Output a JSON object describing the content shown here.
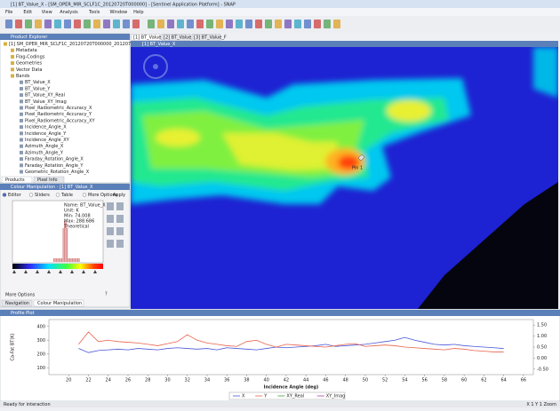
{
  "window": {
    "title": "[1] BT_Value_X - [SM_OPER_MIR_SCLF1C_20120720T000000] - [Sentinel Application Platform] - SNAP"
  },
  "menu": [
    "File",
    "Edit",
    "View",
    "Analysis",
    "Tools",
    "Window",
    "Help"
  ],
  "image_tabs": [
    "[1] BT_Value_X",
    "[2] BT_Value_Y",
    "[3] BT_Value_F"
  ],
  "image_view": {
    "title": "[1] BT_Value_X",
    "pin_label": "Pin 1"
  },
  "product_explorer": {
    "title": "Product Explorer",
    "tree": [
      "[1] SM_OPER_MIR_SCLF1C_20120720T000000_20120720T010000",
      "Metadata",
      "Flag-Codings",
      "Geometries",
      "Vector Data",
      "Bands",
      "BT_Value_X",
      "BT_Value_Y",
      "BT_Value_XY_Real",
      "BT_Value_XY_Imag",
      "Pixel_Radiometric_Accuracy_X",
      "Pixel_Radiometric_Accuracy_Y",
      "Pixel_Radiometric_Accuracy_XY",
      "Incidence_Angle_X",
      "Incidence_Angle_Y",
      "Incidence_Angle_XY",
      "Azimuth_Angle_X",
      "Azimuth_Angle_Y",
      "Faraday_Rotation_Angle_X",
      "Faraday_Rotation_Angle_Y",
      "Geometric_Rotation_Angle_X"
    ],
    "tabs": [
      "Products",
      "Pixel Info"
    ]
  },
  "colour_manipulation": {
    "title": "Colour Manipulation - [1] BT_Value_X",
    "options": [
      "Editor",
      "Sliders",
      "Table",
      "More Options"
    ],
    "reset": "Apply",
    "info": [
      "Name: BT_Value_X",
      "Unit: K",
      "Min: 74.008",
      "Max: 288.686",
      "Theoretical"
    ],
    "more": "More Options",
    "tabs": [
      "Navigation",
      "Colour Manipulation"
    ]
  },
  "plot_panel": {
    "title": "Profile Plot"
  },
  "plot": {
    "x": [
      21,
      22,
      23,
      24,
      25,
      26,
      27,
      28,
      29,
      30,
      31,
      32,
      33,
      34,
      35,
      36,
      37,
      38,
      39,
      40,
      41,
      42,
      43,
      44,
      45,
      46,
      47,
      48,
      49,
      50,
      51,
      52,
      53,
      54,
      55,
      56,
      57,
      58,
      59,
      60,
      61,
      62,
      63,
      64
    ],
    "series": [
      {
        "name": "X",
        "color": "#4a56d8",
        "values": [
          240,
          210,
          225,
          230,
          235,
          230,
          240,
          235,
          230,
          240,
          245,
          240,
          235,
          240,
          230,
          245,
          240,
          235,
          230,
          240,
          250,
          245,
          250,
          255,
          260,
          270,
          255,
          260,
          265,
          270,
          280,
          290,
          300,
          320,
          300,
          285,
          270,
          265,
          270,
          260,
          255,
          250,
          245,
          240
        ]
      },
      {
        "name": "Y",
        "color": "#e8624a",
        "values": [
          270,
          360,
          290,
          300,
          290,
          285,
          280,
          270,
          260,
          275,
          290,
          340,
          300,
          280,
          270,
          260,
          255,
          290,
          300,
          270,
          250,
          270,
          265,
          260,
          255,
          250,
          260,
          270,
          275,
          255,
          260,
          265,
          260,
          250,
          245,
          240,
          235,
          230,
          240,
          235,
          225,
          220,
          215,
          215
        ]
      }
    ],
    "legend_extra": [
      "XY_Real",
      "XY_Imag"
    ],
    "xlabel": "Incidence Angle (deg)",
    "ylabel": "Ca-Fat BT(K)",
    "xlim": [
      18,
      67
    ],
    "xticks": [
      20,
      22,
      24,
      26,
      28,
      30,
      32,
      34,
      36,
      38,
      40,
      42,
      44,
      46,
      48,
      50,
      52,
      54,
      56,
      58,
      60,
      62,
      64,
      66
    ],
    "ylim": [
      50,
      450
    ],
    "yticks": [
      100,
      200,
      300,
      400
    ],
    "y2lim": [
      -0.75,
      1.75
    ],
    "y2ticks": [
      {
        "value": 1.5,
        "label": "1.50"
      },
      {
        "value": 1,
        "label": "1.00"
      },
      {
        "value": 0.5,
        "label": "0.50"
      },
      {
        "value": 0,
        "label": "0.00"
      },
      {
        "value": -0.5,
        "label": "-0.50"
      }
    ]
  },
  "status": {
    "left": "Ready for interaction",
    "right": "X 1  Y 1  Zoom"
  }
}
